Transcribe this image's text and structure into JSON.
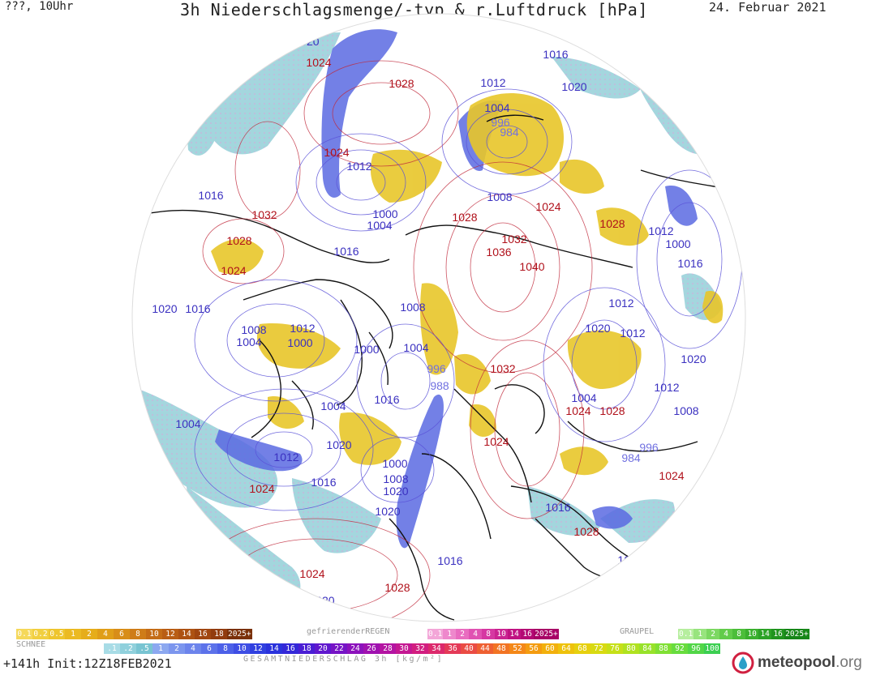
{
  "header": {
    "left": "???, 10Uhr",
    "title": "3h Niederschlagsmenge/-typ & r.Luftdruck [hPa]",
    "date": "24. Februar 2021"
  },
  "colors": {
    "rain": "#e8c62a",
    "snow": "#8fd0dc",
    "heavy": "#4d5de0",
    "high_isobar": "#c0283a",
    "low_isobar": "#5a52d8",
    "coast": "#111111"
  },
  "isobars": [
    {
      "text": "1020",
      "c": "#3a30c0"
    },
    {
      "text": "1024",
      "c": "#b0101a"
    },
    {
      "text": "1028",
      "c": "#b0101a"
    },
    {
      "text": "1016",
      "c": "#3a30c0"
    },
    {
      "text": "1012",
      "c": "#3a30c0"
    },
    {
      "text": "1020",
      "c": "#3a30c0"
    },
    {
      "text": "1004",
      "c": "#3a30c0"
    },
    {
      "text": "996",
      "c": "#7070e0"
    },
    {
      "text": "984",
      "c": "#7070e0"
    },
    {
      "text": "1024",
      "c": "#b0101a"
    },
    {
      "text": "1012",
      "c": "#3a30c0"
    },
    {
      "text": "1016",
      "c": "#3a30c0"
    },
    {
      "text": "1032",
      "c": "#b0101a"
    },
    {
      "text": "1028",
      "c": "#b0101a"
    },
    {
      "text": "1024",
      "c": "#b0101a"
    },
    {
      "text": "1000",
      "c": "#3a30c0"
    },
    {
      "text": "1004",
      "c": "#3a30c0"
    },
    {
      "text": "1008",
      "c": "#3a30c0"
    },
    {
      "text": "1024",
      "c": "#b0101a"
    },
    {
      "text": "1028",
      "c": "#b0101a"
    },
    {
      "text": "1032",
      "c": "#b0101a"
    },
    {
      "text": "1036",
      "c": "#b0101a"
    },
    {
      "text": "1040",
      "c": "#b0101a"
    },
    {
      "text": "1028",
      "c": "#b0101a"
    },
    {
      "text": "1016",
      "c": "#3a30c0"
    },
    {
      "text": "1012",
      "c": "#3a30c0"
    },
    {
      "text": "1000",
      "c": "#3a30c0"
    },
    {
      "text": "1016",
      "c": "#3a30c0"
    },
    {
      "text": "1020",
      "c": "#3a30c0"
    },
    {
      "text": "1016",
      "c": "#3a30c0"
    },
    {
      "text": "1012",
      "c": "#3a30c0"
    },
    {
      "text": "1020",
      "c": "#3a30c0"
    },
    {
      "text": "1008",
      "c": "#3a30c0"
    },
    {
      "text": "1012",
      "c": "#3a30c0"
    },
    {
      "text": "1004",
      "c": "#3a30c0"
    },
    {
      "text": "1000",
      "c": "#3a30c0"
    },
    {
      "text": "1000",
      "c": "#3a30c0"
    },
    {
      "text": "1008",
      "c": "#3a30c0"
    },
    {
      "text": "1004",
      "c": "#3a30c0"
    },
    {
      "text": "996",
      "c": "#7070e0"
    },
    {
      "text": "988",
      "c": "#7070e0"
    },
    {
      "text": "1032",
      "c": "#b0101a"
    },
    {
      "text": "1012",
      "c": "#3a30c0"
    },
    {
      "text": "1020",
      "c": "#3a30c0"
    },
    {
      "text": "1004",
      "c": "#3a30c0"
    },
    {
      "text": "1016",
      "c": "#3a30c0"
    },
    {
      "text": "1024",
      "c": "#b0101a"
    },
    {
      "text": "1028",
      "c": "#b0101a"
    },
    {
      "text": "1012",
      "c": "#3a30c0"
    },
    {
      "text": "1008",
      "c": "#3a30c0"
    },
    {
      "text": "1004",
      "c": "#3a30c0"
    },
    {
      "text": "1004",
      "c": "#3a30c0"
    },
    {
      "text": "1020",
      "c": "#3a30c0"
    },
    {
      "text": "996",
      "c": "#7070e0"
    },
    {
      "text": "1012",
      "c": "#3a30c0"
    },
    {
      "text": "984",
      "c": "#7070e0"
    },
    {
      "text": "1000",
      "c": "#3a30c0"
    },
    {
      "text": "1008",
      "c": "#3a30c0"
    },
    {
      "text": "1020",
      "c": "#3a30c0"
    },
    {
      "text": "1024",
      "c": "#b0101a"
    },
    {
      "text": "1016",
      "c": "#3a30c0"
    },
    {
      "text": "1024",
      "c": "#b0101a"
    },
    {
      "text": "1020",
      "c": "#3a30c0"
    },
    {
      "text": "1016",
      "c": "#3a30c0"
    },
    {
      "text": "1028",
      "c": "#b0101a"
    },
    {
      "text": "1020",
      "c": "#3a30c0"
    },
    {
      "text": "1016",
      "c": "#3a30c0"
    },
    {
      "text": "1024",
      "c": "#b0101a"
    },
    {
      "text": "1028",
      "c": "#b0101a"
    },
    {
      "text": "1020",
      "c": "#3a30c0"
    },
    {
      "text": "1024",
      "c": "#b0101a"
    }
  ],
  "legend": {
    "snow_label": "SCHNEE",
    "snow": [
      {
        "t": "0.1",
        "c": "#f5d85a"
      },
      {
        "t": "0.2",
        "c": "#f1cf40"
      },
      {
        "t": "0.5",
        "c": "#eec52e"
      },
      {
        "t": "1",
        "c": "#ebba22"
      },
      {
        "t": "2",
        "c": "#e6ad1a"
      },
      {
        "t": "4",
        "c": "#e09e18"
      },
      {
        "t": "6",
        "c": "#d88d18"
      },
      {
        "t": "8",
        "c": "#cf7c18"
      },
      {
        "t": "10",
        "c": "#c46c16"
      },
      {
        "t": "12",
        "c": "#b95e14"
      },
      {
        "t": "14",
        "c": "#ad5212"
      },
      {
        "t": "16",
        "c": "#a04610"
      },
      {
        "t": "18",
        "c": "#923c0e"
      },
      {
        "t": "2025+",
        "c": "#7a3008"
      }
    ],
    "freeze_label": "gefrierenderREGEN",
    "freeze": [
      {
        "t": "0.1",
        "c": "#f3a6d8"
      },
      {
        "t": "1",
        "c": "#ee88cc"
      },
      {
        "t": "2",
        "c": "#e96cc0"
      },
      {
        "t": "4",
        "c": "#e052b2"
      },
      {
        "t": "8",
        "c": "#d638a2"
      },
      {
        "t": "10",
        "c": "#cb2492"
      },
      {
        "t": "14",
        "c": "#c01282"
      },
      {
        "t": "16",
        "c": "#b40a74"
      },
      {
        "t": "2025+",
        "c": "#a80066"
      }
    ],
    "graupel_label": "GRAUPEL",
    "graupel": [
      {
        "t": "0.1",
        "c": "#b6ee9e"
      },
      {
        "t": "1",
        "c": "#98e47e"
      },
      {
        "t": "2",
        "c": "#7cd862"
      },
      {
        "t": "4",
        "c": "#62cc4a"
      },
      {
        "t": "8",
        "c": "#4cbe3a"
      },
      {
        "t": "10",
        "c": "#3ab02e"
      },
      {
        "t": "14",
        "c": "#2ca226"
      },
      {
        "t": "16",
        "c": "#20941e"
      },
      {
        "t": "2025+",
        "c": "#168618"
      }
    ],
    "total_label": "GESAMTNIEDERSCHLAG 3h [kg/m²]",
    "total": [
      {
        "t": ".1",
        "c": "#a8dce6"
      },
      {
        "t": ".2",
        "c": "#90d0dc"
      },
      {
        "t": ".5",
        "c": "#78c4d2"
      },
      {
        "t": "1",
        "c": "#8ca8f0"
      },
      {
        "t": "2",
        "c": "#7c96ee"
      },
      {
        "t": "4",
        "c": "#6c84ec"
      },
      {
        "t": "6",
        "c": "#5c72ea"
      },
      {
        "t": "8",
        "c": "#4c60e8"
      },
      {
        "t": "10",
        "c": "#3e4ee4"
      },
      {
        "t": "12",
        "c": "#3040e0"
      },
      {
        "t": "14",
        "c": "#2a32dc"
      },
      {
        "t": "16",
        "c": "#3428d8"
      },
      {
        "t": "18",
        "c": "#4a1ed4"
      },
      {
        "t": "20",
        "c": "#6018ce"
      },
      {
        "t": "22",
        "c": "#7614c6"
      },
      {
        "t": "24",
        "c": "#8c12bc"
      },
      {
        "t": "26",
        "c": "#a012b0"
      },
      {
        "t": "28",
        "c": "#b414a2"
      },
      {
        "t": "30",
        "c": "#c41892"
      },
      {
        "t": "32",
        "c": "#d21e80"
      },
      {
        "t": "34",
        "c": "#dc2a6c"
      },
      {
        "t": "36",
        "c": "#e43a58"
      },
      {
        "t": "40",
        "c": "#ea4c44"
      },
      {
        "t": "44",
        "c": "#ee6032"
      },
      {
        "t": "48",
        "c": "#f27424"
      },
      {
        "t": "52",
        "c": "#f48818"
      },
      {
        "t": "56",
        "c": "#f49c10"
      },
      {
        "t": "60",
        "c": "#f2b00c"
      },
      {
        "t": "64",
        "c": "#eec20c"
      },
      {
        "t": "68",
        "c": "#e6d00e"
      },
      {
        "t": "72",
        "c": "#d8da12"
      },
      {
        "t": "76",
        "c": "#c6e018"
      },
      {
        "t": "80",
        "c": "#b0e220"
      },
      {
        "t": "84",
        "c": "#98e22a"
      },
      {
        "t": "88",
        "c": "#80e034"
      },
      {
        "t": "92",
        "c": "#68dc3e"
      },
      {
        "t": "96",
        "c": "#52d648"
      },
      {
        "t": "100",
        "c": "#3ccf52"
      }
    ]
  },
  "footer": {
    "run_info": "+141h  Init:12Z18FEB2021",
    "logo_name": "meteopool",
    "logo_domain": ".org"
  }
}
